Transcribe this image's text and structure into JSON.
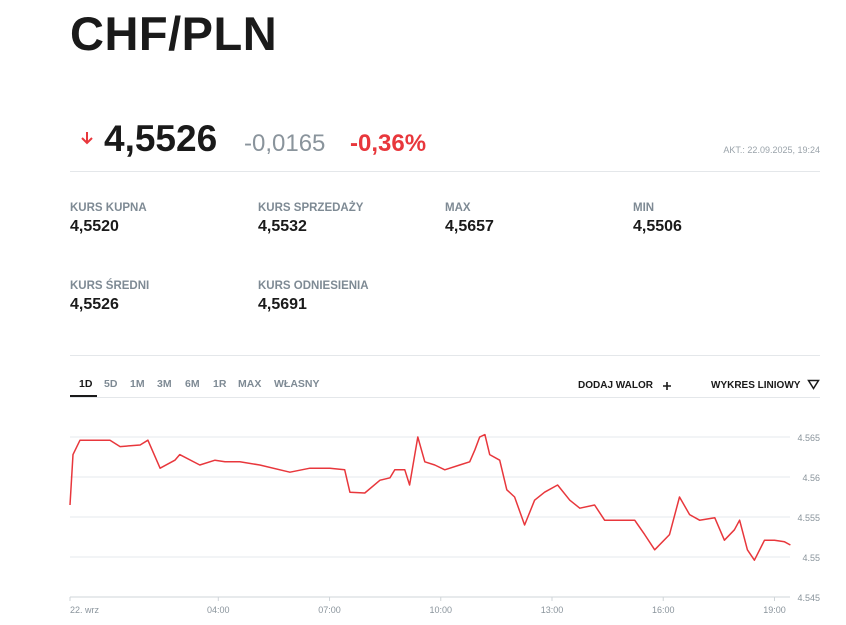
{
  "header": {
    "title": "CHF/PLN"
  },
  "quote": {
    "price": "4,5526",
    "change": "-0,0165",
    "change_pct": "-0,36%",
    "updated": "AKT.: 22.09.2025, 19:24"
  },
  "stats": [
    {
      "label": "KURS KUPNA",
      "value": "4,5520"
    },
    {
      "label": "KURS SPRZEDAŻY",
      "value": "4,5532"
    },
    {
      "label": "MAX",
      "value": "4,5657"
    },
    {
      "label": "MIN",
      "value": "4,5506"
    },
    {
      "label": "KURS ŚREDNI",
      "value": "4,5526"
    },
    {
      "label": "KURS ODNIESIENIA",
      "value": "4,5691"
    }
  ],
  "tabs": [
    "1D",
    "5D",
    "1M",
    "3M",
    "6M",
    "1R",
    "MAX",
    "WŁASNY"
  ],
  "actions": [
    "DODAJ WALOR",
    "WYKRES LINIOWY"
  ],
  "chart_data": {
    "type": "line",
    "color": "#e8373c",
    "x": [
      0,
      0.08,
      0.27,
      0.67,
      1.08,
      1.35,
      1.89,
      2.1,
      2.43,
      2.83,
      2.96,
      3.5,
      3.91,
      4.18,
      4.58,
      5.12,
      5.93,
      6.47,
      7.01,
      7.41,
      7.55,
      7.95,
      8.36,
      8.63,
      8.76,
      9.03,
      9.16,
      9.38,
      9.57,
      9.84,
      10.11,
      10.51,
      10.78,
      10.92,
      11.05,
      11.19,
      11.32,
      11.59,
      11.78,
      11.99,
      12.26,
      12.53,
      12.8,
      13.15,
      13.48,
      13.75,
      14.15,
      14.42,
      14.82,
      15.23,
      15.5,
      15.77,
      16.17,
      16.44,
      16.71,
      16.98,
      17.39,
      17.65,
      17.92,
      18.06,
      18.27,
      18.46,
      18.73,
      19.0,
      19.27,
      19.43
    ],
    "values": [
      4.5565,
      4.5628,
      4.5646,
      4.5646,
      4.5646,
      4.5638,
      4.564,
      4.5646,
      4.5611,
      4.5621,
      4.5628,
      4.5615,
      4.5621,
      4.5619,
      4.5619,
      4.5615,
      4.5606,
      4.5611,
      4.5611,
      4.5609,
      4.5581,
      4.558,
      4.5596,
      4.5599,
      4.5609,
      4.5609,
      4.559,
      4.565,
      4.5619,
      4.5615,
      4.5609,
      4.5615,
      4.5619,
      4.5634,
      4.565,
      4.5653,
      4.5628,
      4.5621,
      4.5584,
      4.5575,
      4.554,
      4.5571,
      4.5581,
      4.559,
      4.5571,
      4.5561,
      4.5565,
      4.5546,
      4.5546,
      4.5546,
      4.5528,
      4.5509,
      4.5528,
      4.5575,
      4.5553,
      4.5546,
      4.5549,
      4.5521,
      4.5534,
      4.5546,
      4.5509,
      4.5496,
      4.5521,
      4.5521,
      4.5519,
      4.5515
    ],
    "xlim": [
      0,
      19.5
    ],
    "xticks": [
      {
        "value": 0,
        "label": "22. wrz"
      },
      {
        "value": 4,
        "label": "04:00"
      },
      {
        "value": 7,
        "label": "07:00"
      },
      {
        "value": 10,
        "label": "10:00"
      },
      {
        "value": 13,
        "label": "13:00"
      },
      {
        "value": 16,
        "label": "16:00"
      },
      {
        "value": 19,
        "label": "19:00"
      }
    ],
    "ylim": [
      4.545,
      4.567
    ],
    "yticks": [
      4.545,
      4.55,
      4.555,
      4.56,
      4.565
    ],
    "grid": true
  }
}
